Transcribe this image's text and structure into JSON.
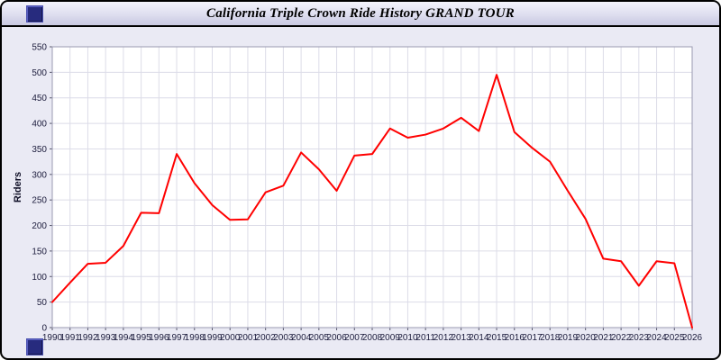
{
  "window": {
    "title": "California Triple Crown Ride History GRAND TOUR"
  },
  "colors": {
    "line": "#ff0000",
    "grid": "#dcdce8",
    "plot_border": "#9a9ab0",
    "tick_text": "#1c1c3c"
  },
  "chart_data": {
    "type": "line",
    "title": "California Triple Crown Ride History GRAND TOUR",
    "xlabel": "",
    "ylabel": "Riders",
    "ylim": [
      0,
      550
    ],
    "ytick_step": 50,
    "grid": true,
    "legend_position": "none",
    "x": [
      1990,
      1991,
      1992,
      1993,
      1994,
      1995,
      1996,
      1997,
      1998,
      1999,
      2000,
      2001,
      2002,
      2003,
      2004,
      2005,
      2006,
      2007,
      2008,
      2009,
      2010,
      2011,
      2012,
      2013,
      2014,
      2015,
      2016,
      2017,
      2018,
      2019,
      2020,
      2021,
      2022,
      2023,
      2024,
      2025,
      2026
    ],
    "series": [
      {
        "name": "Riders",
        "color": "#ff0000",
        "values": [
          50,
          88,
          125,
          127,
          160,
          225,
          224,
          340,
          283,
          240,
          211,
          212,
          265,
          278,
          343,
          310,
          268,
          337,
          340,
          390,
          372,
          378,
          390,
          411,
          385,
          495,
          383,
          352,
          325,
          268,
          213,
          135,
          130,
          82,
          130,
          126,
          0
        ]
      }
    ]
  }
}
